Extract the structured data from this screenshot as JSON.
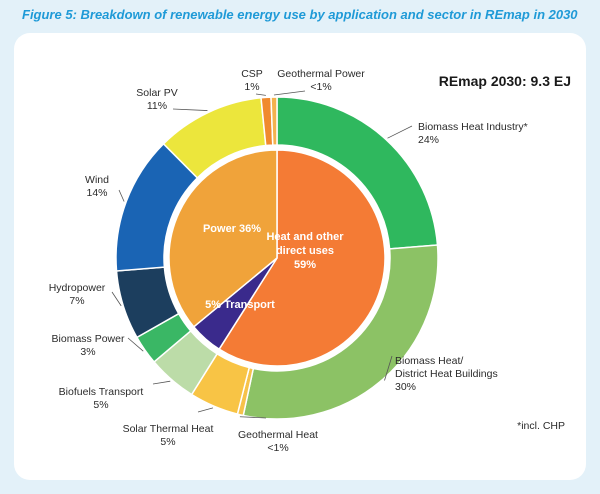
{
  "figure_title": "Figure 5: Breakdown of renewable energy use by application and sector in REmap in 2030",
  "headline": "REmap 2030: 9.3 EJ",
  "footnote": "*incl. CHP",
  "chart_data": {
    "type": "pie",
    "variant": "nested donut",
    "total": "9.3 EJ",
    "inner_ring": [
      {
        "name": "Heat and other direct uses",
        "value": 59,
        "label": [
          "Heat and other",
          "direct uses",
          "59%"
        ],
        "color": "#f47b35"
      },
      {
        "name": "Transport",
        "value": 5,
        "label": [
          "5% Transport"
        ],
        "color": "#3a2a8c"
      },
      {
        "name": "Power",
        "value": 36,
        "label": [
          "Power 36%"
        ],
        "color": "#f0a33a"
      }
    ],
    "outer_ring": [
      {
        "name": "Biomass Heat Industry*",
        "value": 24,
        "label": [
          "Biomass Heat Industry*",
          "24%"
        ],
        "color": "#2fb85e"
      },
      {
        "name": "Biomass Heat/ District Heat Buildings",
        "value": 30,
        "label": [
          "Biomass Heat/",
          "District Heat Buildings",
          "30%"
        ],
        "color": "#8cc265"
      },
      {
        "name": "Geothermal Heat",
        "value": 0.6,
        "label": [
          "Geothermal Heat",
          "<1%"
        ],
        "color": "#f6c24a"
      },
      {
        "name": "Solar Thermal Heat",
        "value": 5,
        "label": [
          "Solar Thermal Heat",
          "5%"
        ],
        "color": "#f8c445"
      },
      {
        "name": "Biofuels Transport",
        "value": 5,
        "label": [
          "Biofuels Transport",
          "5%"
        ],
        "color": "#bcdca8"
      },
      {
        "name": "Biomass Power",
        "value": 3,
        "label": [
          "Biomass Power",
          "3%"
        ],
        "color": "#3ab765"
      },
      {
        "name": "Hydropower",
        "value": 7,
        "label": [
          "Hydropower",
          "7%"
        ],
        "color": "#1c3e5e"
      },
      {
        "name": "Wind",
        "value": 14,
        "label": [
          "Wind",
          "14%"
        ],
        "color": "#1a64b4"
      },
      {
        "name": "Solar PV",
        "value": 11,
        "label": [
          "Solar PV",
          "11%"
        ],
        "color": "#ece63c"
      },
      {
        "name": "CSP",
        "value": 1,
        "label": [
          "CSP",
          "1%"
        ],
        "color": "#f08a2e"
      },
      {
        "name": "Geothermal Power",
        "value": 0.6,
        "label": [
          "Geothermal Power",
          "<1%"
        ],
        "color": "#f3b24e"
      }
    ]
  }
}
